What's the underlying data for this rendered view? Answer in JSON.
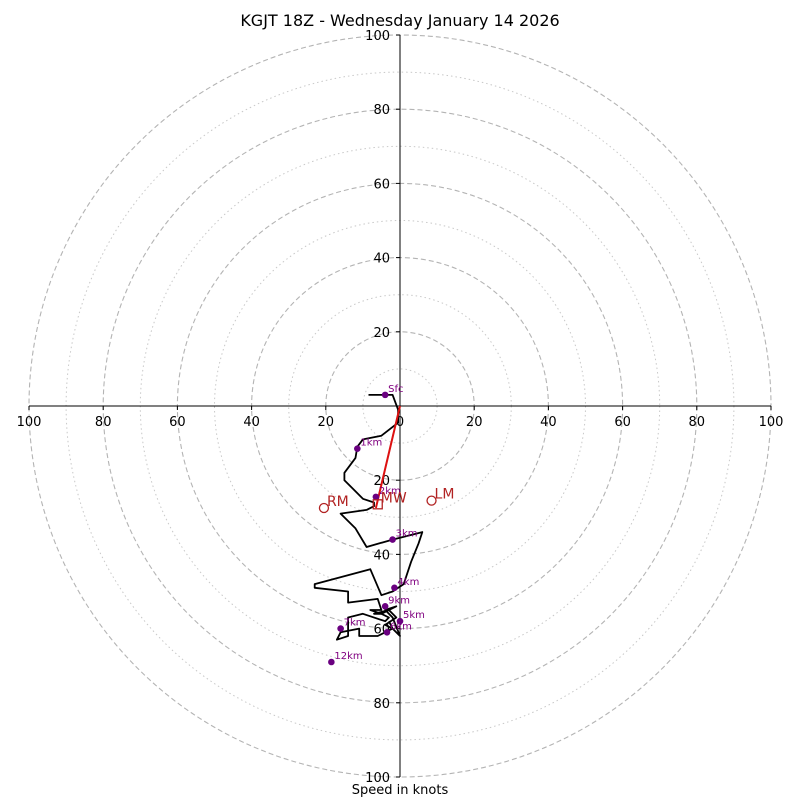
{
  "chart_data": {
    "type": "hodograph",
    "title": "KGJT 18Z - Wednesday January 14 2026",
    "xlabel": "Speed in knots",
    "units": "knots",
    "rlim": [
      0,
      100
    ],
    "ring_values": [
      20,
      40,
      60,
      80,
      100
    ],
    "minor_ring_values": [
      10,
      30,
      50,
      70,
      90
    ],
    "x_tick_labels": [
      "100",
      "80",
      "60",
      "40",
      "20",
      "0",
      "20",
      "40",
      "60",
      "80",
      "100"
    ],
    "y_tick_labels_top": [
      "100",
      "80",
      "60",
      "40",
      "20"
    ],
    "y_tick_labels_bottom": [
      "20",
      "40",
      "60",
      "80",
      "100"
    ],
    "series": [
      {
        "name": "hodograph-trace",
        "color": "#000000",
        "points": [
          [
            -8.5,
            3
          ],
          [
            -2,
            3
          ],
          [
            -0.5,
            -1
          ],
          [
            -0.5,
            -4.5
          ],
          [
            -5,
            -8
          ],
          [
            -10,
            -9
          ],
          [
            -11.5,
            -11
          ],
          [
            -12,
            -14
          ],
          [
            -15,
            -18
          ],
          [
            -15,
            -20
          ],
          [
            -13,
            -22
          ],
          [
            -10,
            -25
          ],
          [
            -7,
            -26
          ],
          [
            -7,
            -27
          ],
          [
            -9,
            -28
          ],
          [
            -16,
            -29
          ],
          [
            -12,
            -33
          ],
          [
            -9,
            -38
          ],
          [
            -2,
            -36
          ],
          [
            6,
            -34
          ],
          [
            5,
            -37
          ],
          [
            3,
            -42
          ],
          [
            1,
            -48
          ],
          [
            -2,
            -50
          ],
          [
            -5,
            -51
          ],
          [
            -8,
            -44
          ],
          [
            -23,
            -48
          ],
          [
            -23,
            -49
          ],
          [
            -14,
            -50
          ],
          [
            -14,
            -52
          ],
          [
            -14,
            -53
          ],
          [
            -6,
            -52
          ],
          [
            -5,
            -55
          ],
          [
            -8,
            -55
          ],
          [
            -5,
            -56
          ],
          [
            -3,
            -57
          ],
          [
            -4,
            -58
          ],
          [
            -10,
            -56
          ],
          [
            -14,
            -57
          ],
          [
            -14,
            -62
          ],
          [
            -17,
            -63
          ],
          [
            -16,
            -61
          ],
          [
            -11,
            -60
          ],
          [
            -11,
            -62
          ],
          [
            -6,
            -62
          ],
          [
            -2,
            -60
          ],
          [
            0,
            -62
          ],
          [
            -2,
            -57
          ],
          [
            -4,
            -55
          ],
          [
            -1,
            -54
          ],
          [
            -5,
            -56
          ],
          [
            -7,
            -56
          ],
          [
            -3,
            -55
          ],
          [
            -1,
            -57
          ],
          [
            -4,
            -59
          ],
          [
            -2,
            -60
          ],
          [
            -3,
            -58
          ]
        ]
      }
    ],
    "height_markers": [
      {
        "label": "Sfc",
        "u": -4,
        "v": 3
      },
      {
        "label": "1km",
        "u": -11.5,
        "v": -11.5
      },
      {
        "label": "2km",
        "u": -6.5,
        "v": -24.5
      },
      {
        "label": "3km",
        "u": -2,
        "v": -36
      },
      {
        "label": "4km",
        "u": -1.5,
        "v": -49
      },
      {
        "label": "5km",
        "u": 0,
        "v": -58
      },
      {
        "label": "6km",
        "u": -3.5,
        "v": -61
      },
      {
        "label": "7km",
        "u": -16,
        "v": -60
      },
      {
        "label": "9km",
        "u": -4,
        "v": -54
      },
      {
        "label": "12km",
        "u": -18.5,
        "v": -69
      }
    ],
    "storm_motions": [
      {
        "label": "RM",
        "u": -20.5,
        "v": -27.5,
        "marker": "circle"
      },
      {
        "label": "LM",
        "u": 8.5,
        "v": -25.5,
        "marker": "circle"
      },
      {
        "label": "MW",
        "u": -6,
        "v": -26.5,
        "marker": "square"
      }
    ],
    "shear_vector": {
      "from": [
        0,
        0
      ],
      "to": [
        -6.5,
        -27.5
      ],
      "color": "#dd1111"
    }
  }
}
